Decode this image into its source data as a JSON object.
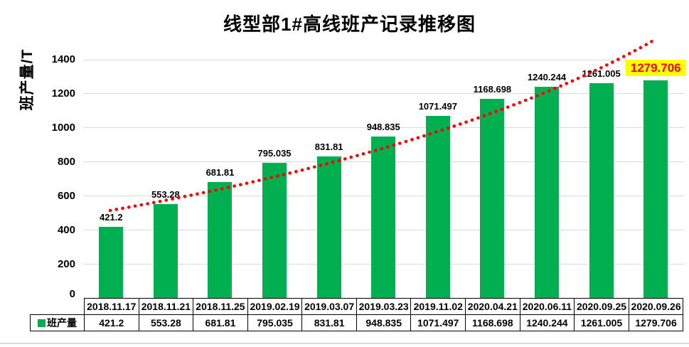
{
  "title": "线型部1#高线班产记录推移图",
  "y_axis_title": "班产量/T",
  "legend_label": "班产量",
  "chart_data": {
    "type": "bar",
    "title": "线型部1#高线班产记录推移图",
    "xlabel": "",
    "ylabel": "班产量/T",
    "categories": [
      "2018.11.17",
      "2018.11.21",
      "2018.11.25",
      "2019.02.19",
      "2019.03.07",
      "2019.03.23",
      "2019.11.02",
      "2020.04.21",
      "2020.06.11",
      "2020.09.25",
      "2020.09.26"
    ],
    "series": [
      {
        "name": "班产量",
        "values": [
          421.2,
          553.28,
          681.81,
          795.035,
          831.81,
          948.835,
          1071.497,
          1168.698,
          1240.244,
          1261.005,
          1279.706
        ]
      }
    ],
    "yticks": [
      0,
      200,
      400,
      600,
      800,
      1000,
      1200,
      1400
    ],
    "ylim": [
      0,
      1400
    ],
    "grid": true,
    "data_labels": true,
    "data_table_below_axis": true,
    "legend_position": "data-table-left",
    "trendline": {
      "style": "dotted",
      "color": "#FF0000"
    },
    "highlighted_label": {
      "index": 10,
      "background": "#FFFF00",
      "text_color": "#FF0000"
    },
    "colors": {
      "bar": "#00B050",
      "gridline": "#D9D9D9",
      "label_text": "#000000"
    }
  }
}
